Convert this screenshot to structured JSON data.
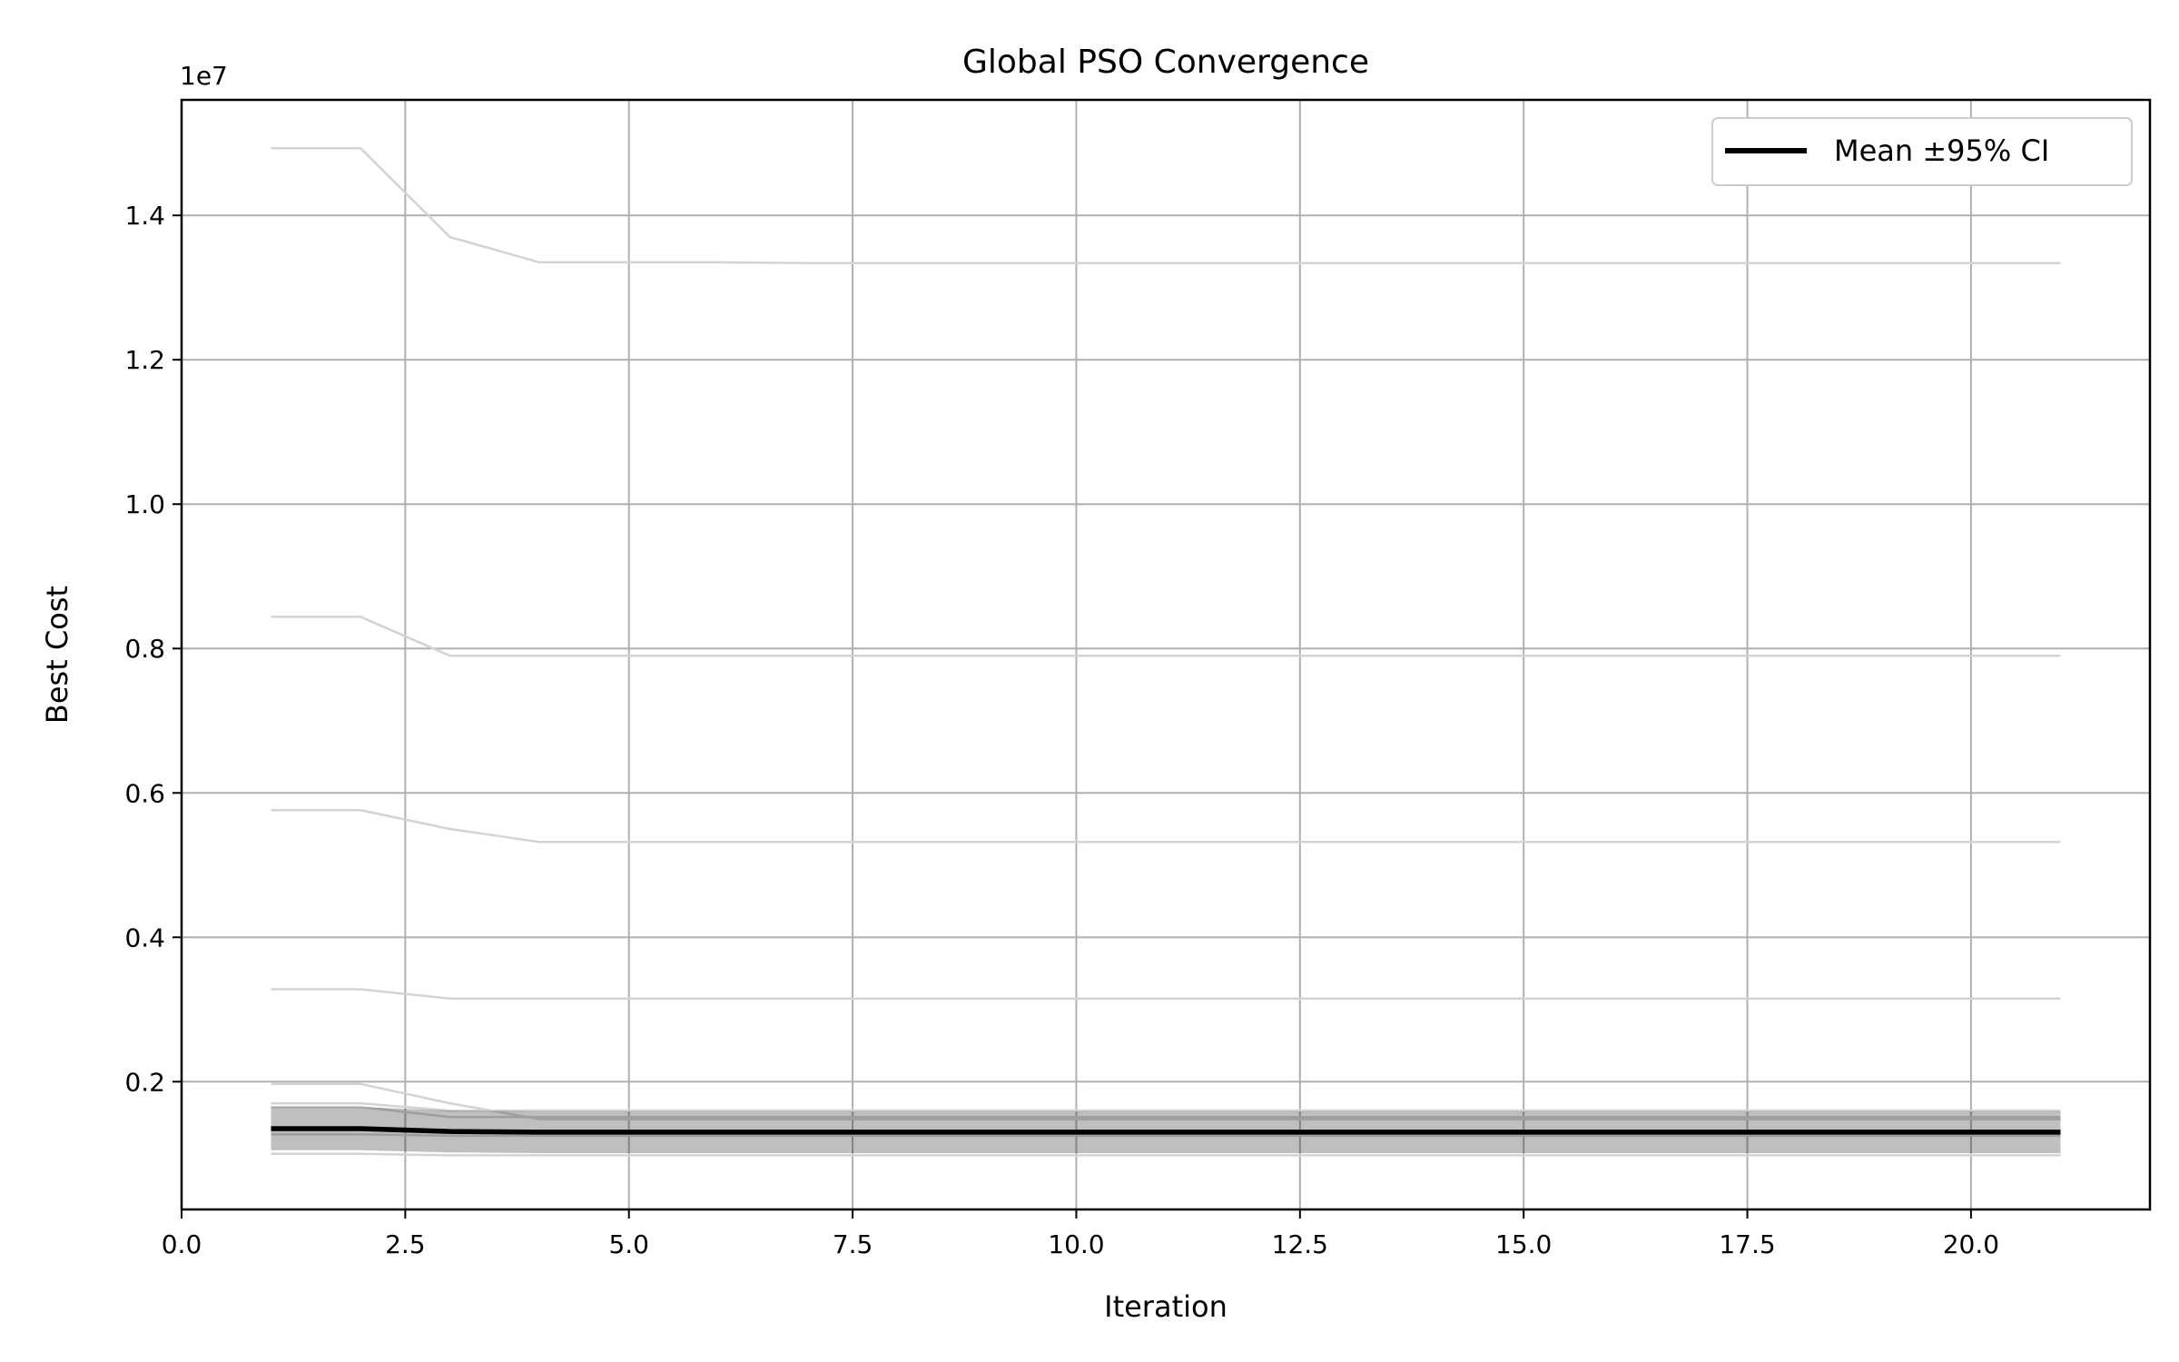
{
  "chart_data": {
    "type": "line",
    "title": "Global PSO Convergence",
    "xlabel": "Iteration",
    "ylabel": "Best Cost",
    "y_offset_label": "1e7",
    "xlim": [
      0,
      22
    ],
    "ylim": [
      230000,
      15600000
    ],
    "x_ticks": [
      0.0,
      2.5,
      5.0,
      7.5,
      10.0,
      12.5,
      15.0,
      17.5,
      20.0
    ],
    "x_tick_labels": [
      "0.0",
      "2.5",
      "5.0",
      "7.5",
      "10.0",
      "12.5",
      "15.0",
      "17.5",
      "20.0"
    ],
    "y_ticks": [
      2000000,
      4000000,
      6000000,
      8000000,
      10000000,
      12000000,
      14000000
    ],
    "y_tick_labels": [
      "0.2",
      "0.4",
      "0.6",
      "0.8",
      "1.0",
      "1.2",
      "1.4"
    ],
    "grid": true,
    "legend_position": "top-right",
    "x": [
      1,
      2,
      3,
      4,
      5,
      6,
      7,
      8,
      9,
      10,
      11,
      12,
      13,
      14,
      15,
      16,
      17,
      18,
      19,
      20,
      21
    ],
    "runs": [
      {
        "values": [
          14930000,
          14930000,
          13700000,
          13350000,
          13350000,
          13350000,
          13340000,
          13340000,
          13340000,
          13340000,
          13340000,
          13340000,
          13340000,
          13340000,
          13340000,
          13340000,
          13340000,
          13340000,
          13340000,
          13340000,
          13340000
        ]
      },
      {
        "values": [
          8440000,
          8440000,
          7900000,
          7900000,
          7900000,
          7900000,
          7900000,
          7900000,
          7900000,
          7900000,
          7900000,
          7900000,
          7900000,
          7900000,
          7900000,
          7900000,
          7900000,
          7900000,
          7900000,
          7900000,
          7900000
        ]
      },
      {
        "values": [
          5760000,
          5760000,
          5500000,
          5320000,
          5320000,
          5320000,
          5320000,
          5320000,
          5320000,
          5320000,
          5320000,
          5320000,
          5320000,
          5320000,
          5320000,
          5320000,
          5320000,
          5320000,
          5320000,
          5320000,
          5320000
        ]
      },
      {
        "values": [
          3280000,
          3280000,
          3150000,
          3150000,
          3150000,
          3150000,
          3150000,
          3150000,
          3150000,
          3150000,
          3150000,
          3150000,
          3150000,
          3150000,
          3150000,
          3150000,
          3150000,
          3150000,
          3150000,
          3150000,
          3150000
        ]
      },
      {
        "values": [
          1970000,
          1970000,
          1700000,
          1480000,
          1480000,
          1480000,
          1480000,
          1480000,
          1480000,
          1480000,
          1480000,
          1480000,
          1480000,
          1480000,
          1480000,
          1480000,
          1480000,
          1480000,
          1480000,
          1480000,
          1480000
        ]
      },
      {
        "values": [
          1700000,
          1700000,
          1600000,
          1600000,
          1600000,
          1600000,
          1600000,
          1600000,
          1600000,
          1600000,
          1600000,
          1600000,
          1600000,
          1600000,
          1600000,
          1600000,
          1600000,
          1600000,
          1600000,
          1600000,
          1600000
        ]
      },
      {
        "values": [
          1650000,
          1650000,
          1510000,
          1510000,
          1510000,
          1510000,
          1510000,
          1510000,
          1510000,
          1510000,
          1510000,
          1510000,
          1510000,
          1510000,
          1510000,
          1510000,
          1510000,
          1510000,
          1510000,
          1510000,
          1510000
        ]
      },
      {
        "values": [
          1270000,
          1270000,
          1250000,
          1250000,
          1250000,
          1250000,
          1250000,
          1250000,
          1250000,
          1250000,
          1250000,
          1250000,
          1250000,
          1250000,
          1250000,
          1250000,
          1250000,
          1250000,
          1250000,
          1250000,
          1250000
        ]
      },
      {
        "values": [
          1000000,
          1000000,
          980000,
          980000,
          980000,
          980000,
          980000,
          980000,
          980000,
          980000,
          980000,
          980000,
          980000,
          980000,
          980000,
          980000,
          980000,
          980000,
          980000,
          980000,
          980000
        ]
      }
    ],
    "mean": {
      "name": "Mean ±95% CI",
      "values": [
        1350000,
        1350000,
        1310000,
        1300000,
        1300000,
        1300000,
        1300000,
        1300000,
        1300000,
        1300000,
        1300000,
        1300000,
        1300000,
        1300000,
        1300000,
        1300000,
        1300000,
        1300000,
        1300000,
        1300000,
        1300000
      ],
      "ci_lower": [
        1050000,
        1050000,
        1020000,
        1010000,
        1010000,
        1010000,
        1010000,
        1010000,
        1010000,
        1010000,
        1010000,
        1010000,
        1010000,
        1010000,
        1010000,
        1010000,
        1010000,
        1010000,
        1010000,
        1010000,
        1010000
      ],
      "ci_upper": [
        1650000,
        1650000,
        1600000,
        1590000,
        1590000,
        1590000,
        1590000,
        1590000,
        1590000,
        1590000,
        1590000,
        1590000,
        1590000,
        1590000,
        1590000,
        1590000,
        1590000,
        1590000,
        1590000,
        1590000,
        1590000
      ]
    },
    "colors": {
      "run_line": "#d3d3d3",
      "ci_band": "#000000",
      "mean_line": "#000000",
      "grid": "#b0b0b0",
      "legend_border": "#cccccc"
    }
  }
}
